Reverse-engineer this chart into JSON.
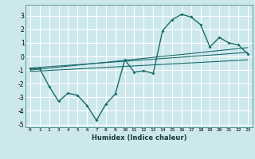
{
  "xlabel": "Humidex (Indice chaleur)",
  "bg_color": "#cde8ec",
  "grid_color": "#ffffff",
  "line_color": "#1a6b6b",
  "xlim": [
    -0.5,
    23.5
  ],
  "ylim": [
    -5.2,
    3.8
  ],
  "xticks": [
    0,
    1,
    2,
    3,
    4,
    5,
    6,
    7,
    8,
    9,
    10,
    11,
    12,
    13,
    14,
    15,
    16,
    17,
    18,
    19,
    20,
    21,
    22,
    23
  ],
  "yticks": [
    -5,
    -4,
    -3,
    -2,
    -1,
    0,
    1,
    2,
    3
  ],
  "curve_x": [
    0,
    1,
    2,
    3,
    4,
    5,
    6,
    7,
    8,
    9,
    10,
    11,
    12,
    13,
    14,
    15,
    16,
    17,
    18,
    19,
    20,
    21,
    22,
    23
  ],
  "curve_y": [
    -0.9,
    -0.9,
    -2.2,
    -3.3,
    -2.7,
    -2.85,
    -3.6,
    -4.7,
    -3.5,
    -2.75,
    -0.25,
    -1.15,
    -1.05,
    -1.25,
    1.9,
    2.7,
    3.1,
    2.9,
    2.35,
    0.7,
    1.4,
    1.0,
    0.85,
    0.2
  ],
  "line1_x": [
    0,
    23
  ],
  "line1_y": [
    -1.0,
    0.65
  ],
  "line2_x": [
    0,
    23
  ],
  "line2_y": [
    -0.85,
    0.3
  ],
  "line3_x": [
    0,
    23
  ],
  "line3_y": [
    -1.1,
    -0.25
  ]
}
